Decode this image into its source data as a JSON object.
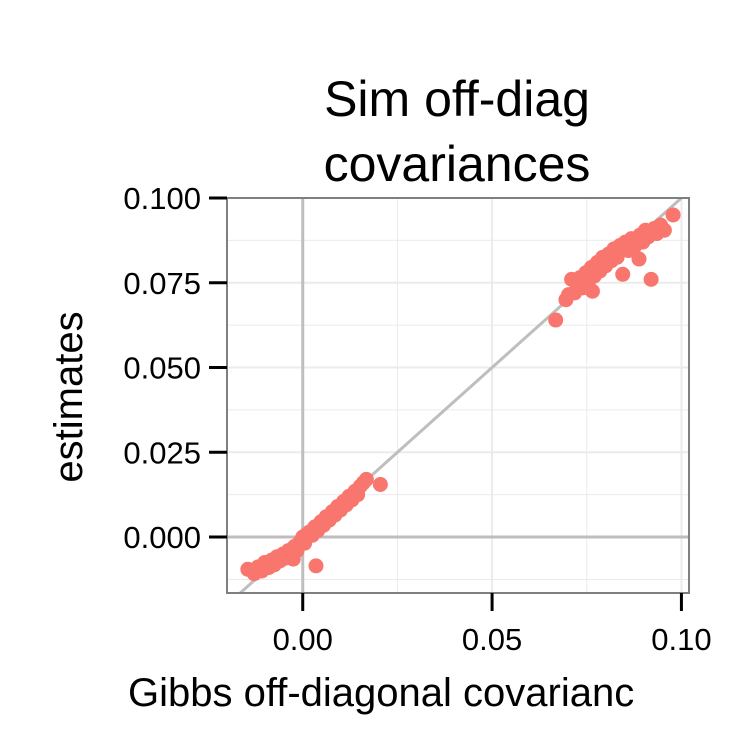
{
  "chart_data": {
    "type": "scatter",
    "title_lines": [
      "Sim off-diag",
      "covariances"
    ],
    "xlabel": "Gibbs off-diagonal covarianc",
    "ylabel": "estimates",
    "xlim": [
      -0.02,
      0.102
    ],
    "ylim": [
      -0.0165,
      0.1
    ],
    "x_ticks": [
      0.0,
      0.05,
      0.1
    ],
    "x_tick_labels": [
      "0.00",
      "0.05",
      "0.10"
    ],
    "y_ticks": [
      0.0,
      0.025,
      0.05,
      0.075,
      0.1
    ],
    "y_tick_labels": [
      "0.000",
      "0.025",
      "0.050",
      "0.075",
      "0.100"
    ],
    "grid": true,
    "reference_lines": {
      "vertical_x": 0,
      "horizontal_y": 0,
      "diagonal_slope": 1
    },
    "colors": {
      "points": "#F8766D",
      "reference": "#BEBEBE",
      "grid": "#EBEBEB",
      "border": "#7F7F7F"
    },
    "points": [
      {
        "x": -0.0145,
        "y": -0.0095
      },
      {
        "x": -0.0128,
        "y": -0.0108
      },
      {
        "x": -0.0118,
        "y": -0.0088
      },
      {
        "x": -0.0108,
        "y": -0.01
      },
      {
        "x": -0.01,
        "y": -0.0075
      },
      {
        "x": -0.009,
        "y": -0.009
      },
      {
        "x": -0.0082,
        "y": -0.0068
      },
      {
        "x": -0.0075,
        "y": -0.0082
      },
      {
        "x": -0.0068,
        "y": -0.0058
      },
      {
        "x": -0.006,
        "y": -0.007
      },
      {
        "x": -0.0052,
        "y": -0.005
      },
      {
        "x": -0.0045,
        "y": -0.0062
      },
      {
        "x": -0.0038,
        "y": -0.004
      },
      {
        "x": -0.003,
        "y": -0.0052
      },
      {
        "x": -0.0022,
        "y": -0.0028
      },
      {
        "x": -0.0015,
        "y": -0.004
      },
      {
        "x": -0.0008,
        "y": -0.0015
      },
      {
        "x": 0.0,
        "y": -0.0005
      },
      {
        "x": 0.0005,
        "y": -0.0018
      },
      {
        "x": 0.001,
        "y": 0.0008
      },
      {
        "x": 0.0018,
        "y": 0.0015
      },
      {
        "x": 0.0025,
        "y": 0.0005
      },
      {
        "x": 0.0032,
        "y": 0.003
      },
      {
        "x": 0.004,
        "y": 0.002
      },
      {
        "x": 0.0048,
        "y": 0.0045
      },
      {
        "x": 0.0055,
        "y": 0.0035
      },
      {
        "x": 0.0062,
        "y": 0.006
      },
      {
        "x": 0.007,
        "y": 0.005
      },
      {
        "x": 0.0078,
        "y": 0.0075
      },
      {
        "x": 0.0085,
        "y": 0.0065
      },
      {
        "x": 0.0092,
        "y": 0.009
      },
      {
        "x": 0.01,
        "y": 0.008
      },
      {
        "x": 0.0108,
        "y": 0.0105
      },
      {
        "x": 0.0115,
        "y": 0.0095
      },
      {
        "x": 0.0122,
        "y": 0.012
      },
      {
        "x": 0.013,
        "y": 0.011
      },
      {
        "x": 0.0138,
        "y": 0.0135
      },
      {
        "x": 0.0145,
        "y": 0.0125
      },
      {
        "x": 0.0152,
        "y": 0.015
      },
      {
        "x": 0.016,
        "y": 0.016
      },
      {
        "x": 0.0168,
        "y": 0.017
      },
      {
        "x": 0.0205,
        "y": 0.0155
      },
      {
        "x": 0.0035,
        "y": -0.0085
      },
      {
        "x": 0.0,
        "y": 0.0
      },
      {
        "x": -0.0025,
        "y": -0.0065
      },
      {
        "x": 0.0668,
        "y": 0.064
      },
      {
        "x": 0.0695,
        "y": 0.07
      },
      {
        "x": 0.0702,
        "y": 0.0715
      },
      {
        "x": 0.071,
        "y": 0.076
      },
      {
        "x": 0.0718,
        "y": 0.072
      },
      {
        "x": 0.0725,
        "y": 0.074
      },
      {
        "x": 0.0732,
        "y": 0.0765
      },
      {
        "x": 0.074,
        "y": 0.0735
      },
      {
        "x": 0.0748,
        "y": 0.078
      },
      {
        "x": 0.0755,
        "y": 0.0755
      },
      {
        "x": 0.0762,
        "y": 0.0795
      },
      {
        "x": 0.077,
        "y": 0.077
      },
      {
        "x": 0.0778,
        "y": 0.081
      },
      {
        "x": 0.0785,
        "y": 0.0785
      },
      {
        "x": 0.0792,
        "y": 0.0825
      },
      {
        "x": 0.08,
        "y": 0.08
      },
      {
        "x": 0.0808,
        "y": 0.0835
      },
      {
        "x": 0.0815,
        "y": 0.0815
      },
      {
        "x": 0.0822,
        "y": 0.085
      },
      {
        "x": 0.083,
        "y": 0.0825
      },
      {
        "x": 0.0838,
        "y": 0.086
      },
      {
        "x": 0.0845,
        "y": 0.0775
      },
      {
        "x": 0.0852,
        "y": 0.087
      },
      {
        "x": 0.086,
        "y": 0.0845
      },
      {
        "x": 0.0868,
        "y": 0.088
      },
      {
        "x": 0.0875,
        "y": 0.0855
      },
      {
        "x": 0.0882,
        "y": 0.0865
      },
      {
        "x": 0.089,
        "y": 0.089
      },
      {
        "x": 0.0898,
        "y": 0.087
      },
      {
        "x": 0.0905,
        "y": 0.0905
      },
      {
        "x": 0.0912,
        "y": 0.0885
      },
      {
        "x": 0.092,
        "y": 0.076
      },
      {
        "x": 0.0928,
        "y": 0.091
      },
      {
        "x": 0.0935,
        "y": 0.0895
      },
      {
        "x": 0.0945,
        "y": 0.092
      },
      {
        "x": 0.0955,
        "y": 0.0905
      },
      {
        "x": 0.0978,
        "y": 0.095
      },
      {
        "x": 0.0888,
        "y": 0.082
      },
      {
        "x": 0.0765,
        "y": 0.0725
      }
    ]
  }
}
